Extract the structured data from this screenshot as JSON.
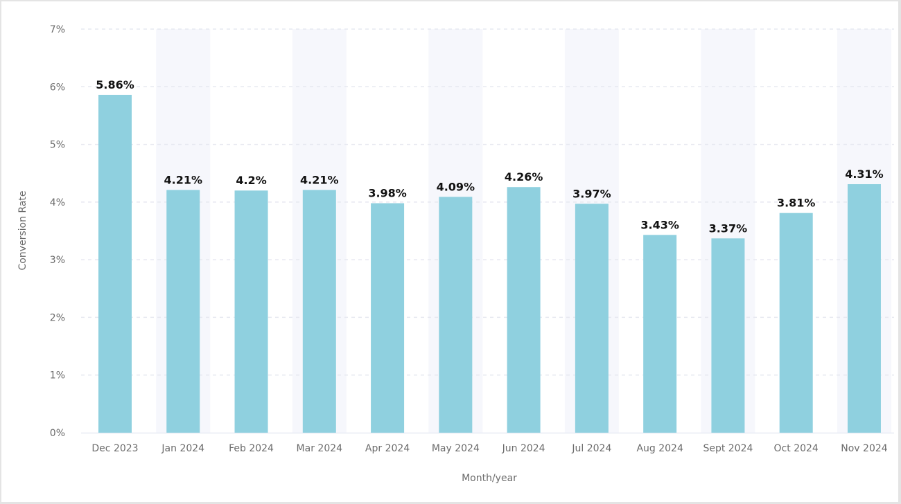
{
  "chart_data": {
    "type": "bar",
    "categories": [
      "Dec 2023",
      "Jan 2024",
      "Feb 2024",
      "Mar 2024",
      "Apr 2024",
      "May 2024",
      "Jun 2024",
      "Jul 2024",
      "Aug 2024",
      "Sept 2024",
      "Oct 2024",
      "Nov 2024"
    ],
    "values": [
      5.86,
      4.21,
      4.2,
      4.21,
      3.98,
      4.09,
      4.26,
      3.97,
      3.43,
      3.37,
      3.81,
      4.31
    ],
    "data_labels": [
      "5.86%",
      "4.21%",
      "4.2%",
      "4.21%",
      "3.98%",
      "4.09%",
      "4.26%",
      "3.97%",
      "3.43%",
      "3.37%",
      "3.81%",
      "4.31%"
    ],
    "title": "",
    "xlabel": "Month/year",
    "ylabel": "Conversion Rate",
    "ylim": [
      0,
      7
    ],
    "yticks": [
      "0%",
      "1%",
      "2%",
      "3%",
      "4%",
      "5%",
      "6%",
      "7%"
    ],
    "grid": true,
    "legend": "none",
    "colors": {
      "bar": "#8fd0df",
      "band": "#f6f7fc",
      "grid": "#e6e8f0",
      "axis": "#e8eaf4"
    }
  }
}
